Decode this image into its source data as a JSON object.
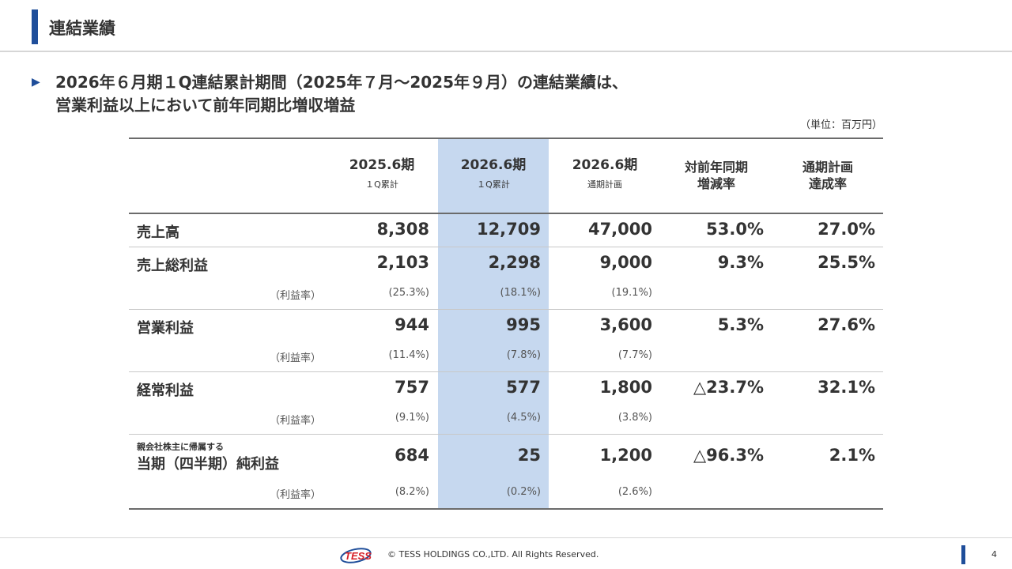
{
  "header": {
    "title": "連結業績"
  },
  "headline": {
    "line1": "2026年６月期１Q連結累計期間（2025年７月～2025年９月）の連結業績は、",
    "line2": "営業利益以上において前年同期比増収増益"
  },
  "unit_note": "（単位：百万円）",
  "table": {
    "columns": [
      {
        "title": "2025.6期",
        "subtitle": "１Q累計"
      },
      {
        "title": "2026.6期",
        "subtitle": "１Q累計"
      },
      {
        "title": "2026.6期",
        "subtitle": "通期計画"
      },
      {
        "title_line1": "対前年同期",
        "title_line2": "増減率"
      },
      {
        "title_line1": "通期計画",
        "title_line2": "達成率"
      }
    ],
    "rows": [
      {
        "label": "売上高",
        "values": [
          "8,308",
          "12,709",
          "47,000",
          "53.0%",
          "27.0%"
        ]
      },
      {
        "label": "売上総利益",
        "values": [
          "2,103",
          "2,298",
          "9,000",
          "9.3%",
          "25.5%"
        ],
        "ratio_label": "（利益率）",
        "ratios": [
          "(25.3%)",
          "(18.1%)",
          "(19.1%)"
        ]
      },
      {
        "label": "営業利益",
        "values": [
          "944",
          "995",
          "3,600",
          "5.3%",
          "27.6%"
        ],
        "ratio_label": "（利益率）",
        "ratios": [
          "(11.4%)",
          "(7.8%)",
          "(7.7%)"
        ]
      },
      {
        "label": "経常利益",
        "values": [
          "757",
          "577",
          "1,800",
          "△23.7%",
          "32.1%"
        ],
        "ratio_label": "（利益率）",
        "ratios": [
          "(9.1%)",
          "(4.5%)",
          "(3.8%)"
        ]
      },
      {
        "label_small": "親会社株主に帰属する",
        "label": "当期（四半期）純利益",
        "values": [
          "684",
          "25",
          "1,200",
          "△96.3%",
          "2.1%"
        ],
        "ratio_label": "（利益率）",
        "ratios": [
          "(8.2%)",
          "(0.2%)",
          "(2.6%)"
        ]
      }
    ]
  },
  "footer": {
    "logo_text": "TESS",
    "copyright": "© TESS HOLDINGS CO.,LTD. All Rights Reserved.",
    "page_number": "4"
  },
  "colors": {
    "accent": "#1f4e9a",
    "highlight_column": "#c6d8ef"
  }
}
